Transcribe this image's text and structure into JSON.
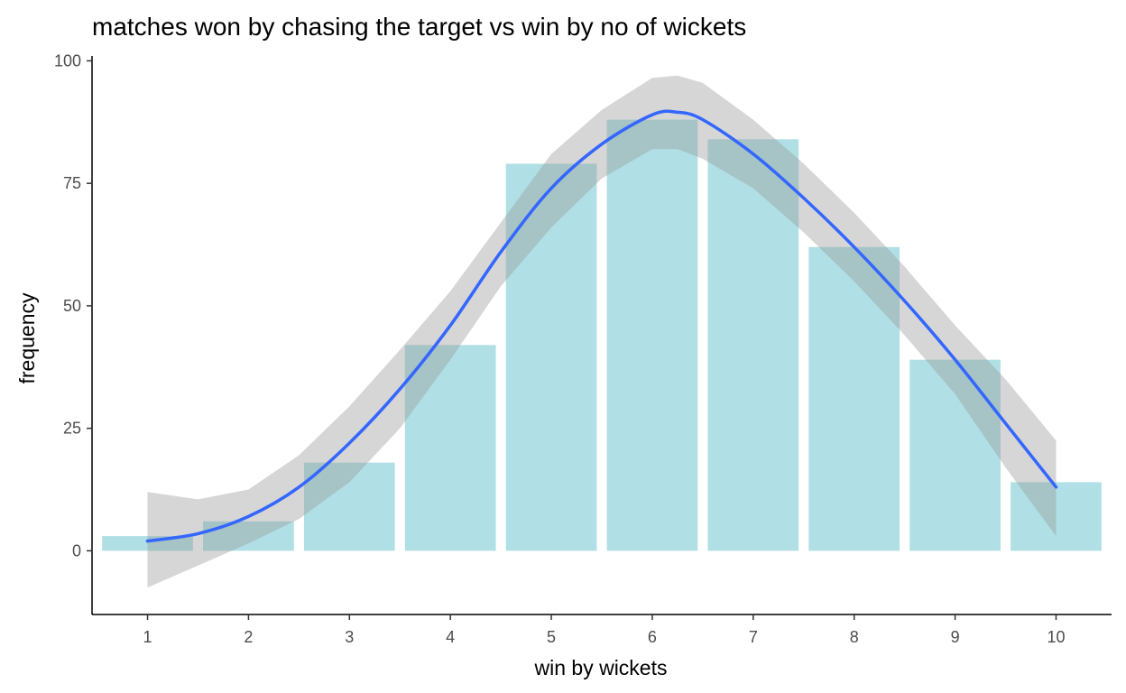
{
  "chart_data": {
    "type": "bar",
    "title": "matches won by chasing the target vs win by no of wickets",
    "xlabel": "win by wickets",
    "ylabel": "frequency",
    "categories": [
      1,
      2,
      3,
      4,
      5,
      6,
      7,
      8,
      9,
      10
    ],
    "values": [
      3,
      6,
      18,
      42,
      79,
      88,
      84,
      62,
      39,
      14
    ],
    "xlim": [
      0.45,
      10.55
    ],
    "ylim": [
      -13,
      101
    ],
    "yticks": [
      0,
      25,
      50,
      75,
      100
    ],
    "xticks": [
      1,
      2,
      3,
      4,
      5,
      6,
      7,
      8,
      9,
      10
    ],
    "bar_color": "#b0dfe5",
    "smooth": {
      "method": "loess",
      "line_color": "#3366ff",
      "band_color": "#999999",
      "x": [
        1,
        1.5,
        2,
        2.5,
        3,
        3.5,
        4,
        4.5,
        5,
        5.5,
        6,
        6.25,
        6.5,
        7,
        7.5,
        8,
        8.5,
        9,
        9.5,
        10
      ],
      "y": [
        2,
        3.5,
        7,
        13,
        22,
        33,
        46,
        61,
        74,
        83,
        89,
        89.5,
        88,
        81,
        72,
        62,
        51,
        39,
        26,
        13
      ],
      "lower": [
        -7.5,
        -3,
        1.5,
        6.5,
        14,
        25,
        39,
        54,
        66,
        76,
        82,
        82,
        80,
        74,
        65,
        55,
        44,
        32,
        17,
        3
      ],
      "upper": [
        12,
        10.5,
        12.5,
        19.5,
        29.5,
        41,
        53,
        67,
        81,
        90,
        96.5,
        97,
        95.5,
        88,
        79,
        69,
        58,
        46,
        35,
        22.5
      ]
    },
    "grid": false,
    "legend": "none"
  }
}
